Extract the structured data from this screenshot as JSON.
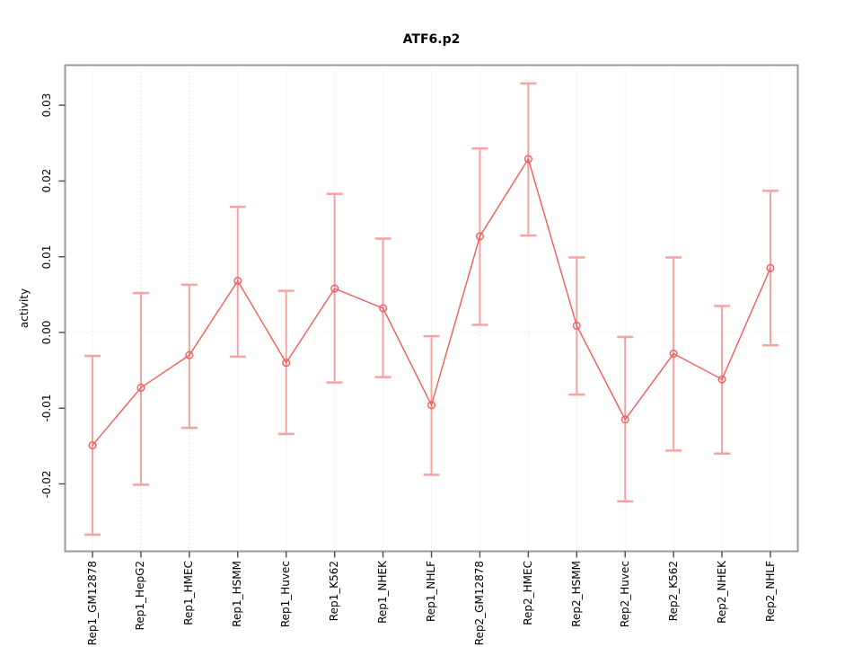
{
  "chart_data": {
    "type": "line",
    "title": "ATF6.p2",
    "xlabel": "",
    "ylabel": "activity",
    "categories": [
      "Rep1_GM12878",
      "Rep1_HepG2",
      "Rep1_HMEC",
      "Rep1_HSMM",
      "Rep1_Huvec",
      "Rep1_K562",
      "Rep1_NHEK",
      "Rep1_NHLF",
      "Rep2_GM12878",
      "Rep2_HMEC",
      "Rep2_HSMM",
      "Rep2_Huvec",
      "Rep2_K562",
      "Rep2_NHEK",
      "Rep2_NHLF"
    ],
    "series": [
      {
        "name": "activity",
        "means": [
          -0.0149,
          -0.0073,
          -0.003,
          0.0068,
          -0.004,
          0.0058,
          0.0032,
          -0.0096,
          0.0127,
          0.0229,
          0.0009,
          -0.0115,
          -0.0028,
          -0.0062,
          0.0085
        ],
        "upper": [
          -0.0031,
          0.0052,
          0.0063,
          0.0166,
          0.0055,
          0.0183,
          0.0124,
          -0.0005,
          0.0243,
          0.0329,
          0.0099,
          -0.0006,
          0.0099,
          0.0035,
          0.0187
        ],
        "lower": [
          -0.0267,
          -0.0201,
          -0.0126,
          -0.0032,
          -0.0134,
          -0.0066,
          -0.0059,
          -0.0188,
          0.001,
          0.0128,
          -0.0082,
          -0.0223,
          -0.0156,
          -0.016,
          -0.0017
        ]
      }
    ],
    "yticks": [
      -0.02,
      -0.01,
      0.0,
      0.01,
      0.02,
      0.03
    ],
    "ytick_labels": [
      "-0.02",
      "-0.01",
      "0.00",
      "0.01",
      "0.02",
      "0.03"
    ],
    "ylim": [
      -0.0289,
      0.0353
    ],
    "grid": "dotted vertical gridline at each category; dotted horizontal line at zero",
    "legend_position": "none",
    "colors": {
      "line": "#f05c5c",
      "point_stroke": "#f05c5c",
      "error_bar": "#f6a2a2",
      "grid": "#d8d8d8",
      "zero_line": "#e3e3e3",
      "frame": "#9a9a9a",
      "tick": "#4a4a4a",
      "text": "#000000"
    }
  }
}
